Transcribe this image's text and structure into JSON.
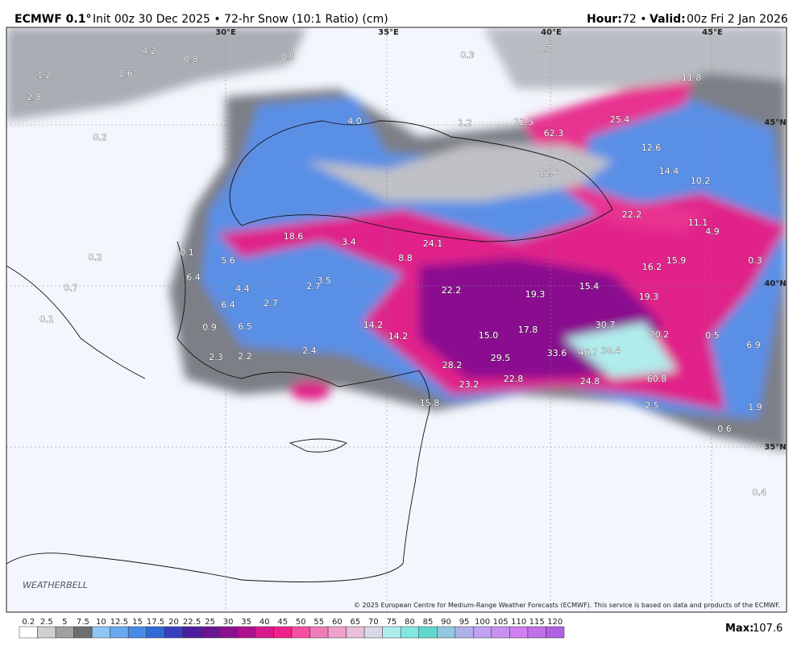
{
  "header": {
    "model": "ECMWF 0.1°",
    "title": "Init 00z 30 Dec 2025 • 72-hr Snow (10:1 Ratio) (cm)",
    "hour_label": "Hour:",
    "hour_value": "72 •",
    "valid_label": "Valid:",
    "valid_value": "00z Fri 2 Jan 2026"
  },
  "map": {
    "gridlabels": [
      "30°E",
      "35°E",
      "40°E",
      "45°E",
      "45°N",
      "40°N",
      "35°N"
    ],
    "labels": [
      "4.2",
      "0.8",
      "1.2",
      "1.6",
      "2.8",
      "0.5",
      "0.3",
      "1.7",
      "11.8",
      "4.0",
      "1.2",
      "12.5",
      "62.3",
      "25.4",
      "0.2",
      "12.6",
      "14.4",
      "12.6",
      "10.2",
      "22.2",
      "11.1",
      "18.6",
      "3.4",
      "24.1",
      "4.9",
      "0.2",
      "0.1",
      "5.6",
      "8.8",
      "16.2",
      "15.9",
      "0.3",
      "6.4",
      "3.5",
      "2.7",
      "4.4",
      "22.2",
      "19.3",
      "15.4",
      "19.3",
      "0.7",
      "2.7",
      "6.4",
      "0.1",
      "14.2",
      "6.5",
      "30.7",
      "14.2",
      "15.0",
      "17.8",
      "20.2",
      "0.5",
      "0.9",
      "2.3",
      "2.2",
      "2.4",
      "33.6",
      "46.7",
      "38.4",
      "6.9",
      "28.2",
      "29.5",
      "23.2",
      "22.8",
      "24.8",
      "60.8",
      "15.8",
      "2.5",
      "1.9",
      "0.6",
      "0.4"
    ],
    "logo": "WEATHERBELL",
    "copyright": "© 2025 European Centre for Medium-Range Weather Forecasts (ECMWF). This service is based on data and products of the ECMWF."
  },
  "colorbar": {
    "ticks": [
      0.2,
      2.5,
      5,
      7.5,
      10,
      12.5,
      15,
      17.5,
      20,
      22.5,
      25,
      30,
      35,
      40,
      45,
      50,
      55,
      60,
      65,
      70,
      75,
      80,
      85,
      90,
      95,
      100,
      105,
      110,
      115,
      120
    ],
    "colors": [
      "#ffffff",
      "#d0d0d0",
      "#a0a0a0",
      "#6e6e6e",
      "#8ec6f5",
      "#6aa8f0",
      "#4a8ae8",
      "#2f6ad8",
      "#3a3fbf",
      "#4b1fa0",
      "#6a1590",
      "#8a1090",
      "#b01090",
      "#d81a8e",
      "#f0208a",
      "#f550a0",
      "#f07ab8",
      "#f0a0cc",
      "#e8c0d8",
      "#d8d8e8",
      "#b0ecec",
      "#80e8e0",
      "#60d8d0",
      "#90c8e0",
      "#b0b0e8",
      "#c0a0f0",
      "#c890f0",
      "#d080f0",
      "#c070e8",
      "#b060e0"
    ]
  },
  "footer": {
    "max_label": "Max:",
    "max_value": 107.6
  }
}
